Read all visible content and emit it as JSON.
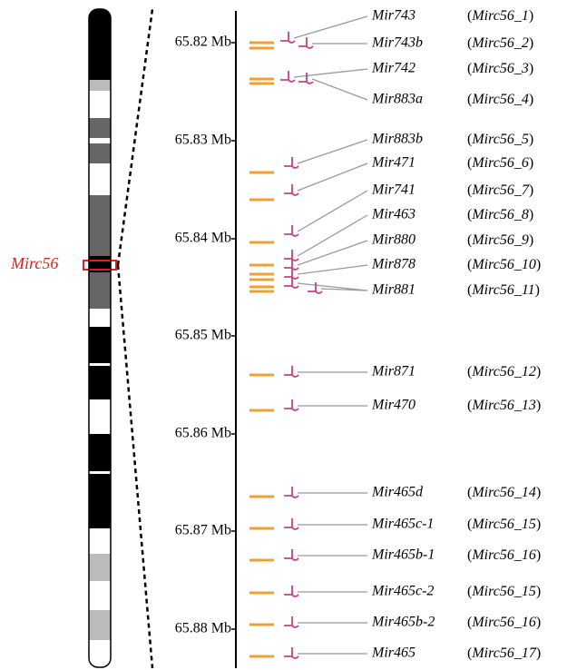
{
  "chromosome_label": "Mirc56",
  "axis": {
    "ticks": [
      "65.82 Mb",
      "65.83 Mb",
      "65.84 Mb",
      "65.85 Mb",
      "65.86 Mb",
      "65.87 Mb",
      "65.88 Mb"
    ]
  },
  "mirnas": [
    {
      "name": "Mir743",
      "cluster": "(Mirc56_1)"
    },
    {
      "name": "Mir743b",
      "cluster": "(Mirc56_2)"
    },
    {
      "name": "Mir742",
      "cluster": "(Mirc56_3)"
    },
    {
      "name": "Mir883a",
      "cluster": "(Mirc56_4)"
    },
    {
      "name": "Mir883b",
      "cluster": "(Mirc56_5)"
    },
    {
      "name": "Mir471",
      "cluster": "(Mirc56_6)"
    },
    {
      "name": "Mir741",
      "cluster": "(Mirc56_7)"
    },
    {
      "name": "Mir463",
      "cluster": "(Mirc56_8)"
    },
    {
      "name": "Mir880",
      "cluster": "(Mirc56_9)"
    },
    {
      "name": "Mir878",
      "cluster": "(Mirc56_10)"
    },
    {
      "name": "Mir881",
      "cluster": "(Mirc56_11)"
    },
    {
      "name": "Mir871",
      "cluster": "(Mirc56_12)"
    },
    {
      "name": "Mir470",
      "cluster": "(Mirc56_13)"
    },
    {
      "name": "Mir465d",
      "cluster": "(Mirc56_14)"
    },
    {
      "name": "Mir465c-1",
      "cluster": "(Mirc56_15)"
    },
    {
      "name": "Mir465b-1",
      "cluster": "(Mirc56_16)"
    },
    {
      "name": "Mir465c-2",
      "cluster": "(Mirc56_15)"
    },
    {
      "name": "Mir465b-2",
      "cluster": "(Mirc56_16)"
    },
    {
      "name": "Mir465",
      "cluster": "(Mirc56_17)"
    }
  ]
}
